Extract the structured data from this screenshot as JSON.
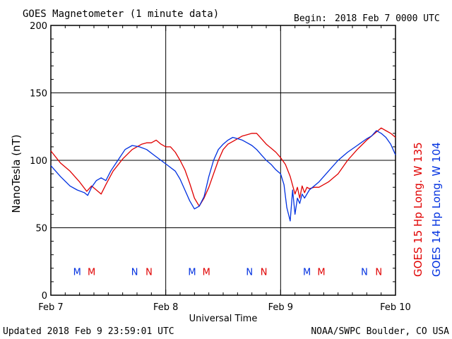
{
  "header": {
    "title": "GOES Magnetometer (1 minute data)",
    "begin_label": "Begin:",
    "begin_value": "2018 Feb 7 0000 UTC"
  },
  "footer": {
    "updated": "Updated 2018 Feb  9 23:59:01 UTC",
    "source": "NOAA/SWPC Boulder, CO USA"
  },
  "colors": {
    "goes15": "#e00000",
    "goes14": "#0030e0",
    "grid": "#000000"
  },
  "chart_data": {
    "type": "line",
    "ylabel": "NanoTesla (nT)",
    "xlabel": "Universal Time",
    "ylim": [
      0,
      200
    ],
    "yticks": [
      0,
      50,
      100,
      150,
      200
    ],
    "xlim": [
      0,
      72
    ],
    "xticks": [
      {
        "label": "Feb 7",
        "hour": 0
      },
      {
        "label": "Feb 8",
        "hour": 24
      },
      {
        "label": "Feb 9",
        "hour": 48
      },
      {
        "label": "Feb 10",
        "hour": 72
      }
    ],
    "grid": true,
    "legend": "right-vertical",
    "series": [
      {
        "name": "GOES 15 Hp  Long. W 135",
        "color": "#e00000",
        "x": [
          0,
          2,
          4,
          6,
          7.5,
          8.5,
          9.5,
          10.5,
          11.5,
          13,
          15,
          17,
          19,
          20,
          21,
          22,
          23,
          24,
          25,
          26,
          27,
          28,
          29,
          30,
          31,
          32,
          33,
          34,
          35,
          36,
          37,
          38,
          39,
          40,
          41,
          42,
          43,
          44,
          45,
          46,
          47,
          48,
          49,
          50,
          51,
          51.5,
          52,
          52.5,
          53,
          53.5,
          54,
          55,
          56,
          58,
          60,
          62,
          64,
          66,
          67,
          68,
          69,
          70,
          71,
          72
        ],
        "y": [
          107,
          98,
          92,
          84,
          77,
          81,
          78,
          75,
          82,
          92,
          101,
          108,
          112,
          113,
          113,
          115,
          112,
          110,
          110,
          106,
          100,
          93,
          83,
          72,
          66,
          72,
          80,
          90,
          100,
          108,
          112,
          114,
          116,
          118,
          119,
          120,
          120,
          116,
          112,
          109,
          106,
          102,
          97,
          88,
          75,
          80,
          72,
          81,
          76,
          80,
          79,
          80,
          80,
          84,
          90,
          100,
          108,
          115,
          118,
          121,
          124,
          122,
          120,
          117
        ]
      },
      {
        "name": "GOES 14 Hp  Long. W 104",
        "color": "#0030e0",
        "x": [
          0,
          2,
          4,
          5.5,
          7,
          7.7,
          8.5,
          9.5,
          10.5,
          11.5,
          12.5,
          14,
          15.5,
          17,
          18.5,
          20,
          21.5,
          23,
          24.5,
          26,
          27,
          28,
          29,
          30,
          31,
          32,
          33,
          34,
          35,
          36,
          37,
          38,
          39,
          40,
          41,
          42,
          43,
          44,
          45,
          46,
          47,
          48,
          48.7,
          49.3,
          50,
          50.5,
          51,
          51.5,
          52,
          52.5,
          53,
          54,
          56,
          58,
          60,
          62,
          64,
          66,
          67,
          68,
          69,
          70,
          71,
          72
        ],
        "y": [
          96,
          88,
          81,
          78,
          76,
          74,
          80,
          85,
          87,
          85,
          92,
          100,
          108,
          111,
          110,
          108,
          104,
          100,
          96,
          92,
          86,
          78,
          70,
          64,
          66,
          73,
          88,
          100,
          108,
          112,
          115,
          117,
          116,
          115,
          113,
          111,
          108,
          104,
          100,
          97,
          93,
          90,
          82,
          65,
          55,
          78,
          60,
          72,
          68,
          75,
          72,
          78,
          84,
          92,
          100,
          106,
          111,
          116,
          118,
          122,
          120,
          117,
          112,
          104
        ]
      }
    ],
    "markers": [
      {
        "label": "M",
        "hour": 5.5,
        "series": 1
      },
      {
        "label": "M",
        "hour": 8.5,
        "series": 0
      },
      {
        "label": "N",
        "hour": 17.5,
        "series": 1
      },
      {
        "label": "N",
        "hour": 20.5,
        "series": 0
      },
      {
        "label": "M",
        "hour": 29.5,
        "series": 1
      },
      {
        "label": "M",
        "hour": 32.5,
        "series": 0
      },
      {
        "label": "N",
        "hour": 41.5,
        "series": 1
      },
      {
        "label": "N",
        "hour": 44.5,
        "series": 0
      },
      {
        "label": "M",
        "hour": 53.5,
        "series": 1
      },
      {
        "label": "M",
        "hour": 56.5,
        "series": 0
      },
      {
        "label": "N",
        "hour": 65.5,
        "series": 1
      },
      {
        "label": "N",
        "hour": 68.5,
        "series": 0
      }
    ]
  }
}
